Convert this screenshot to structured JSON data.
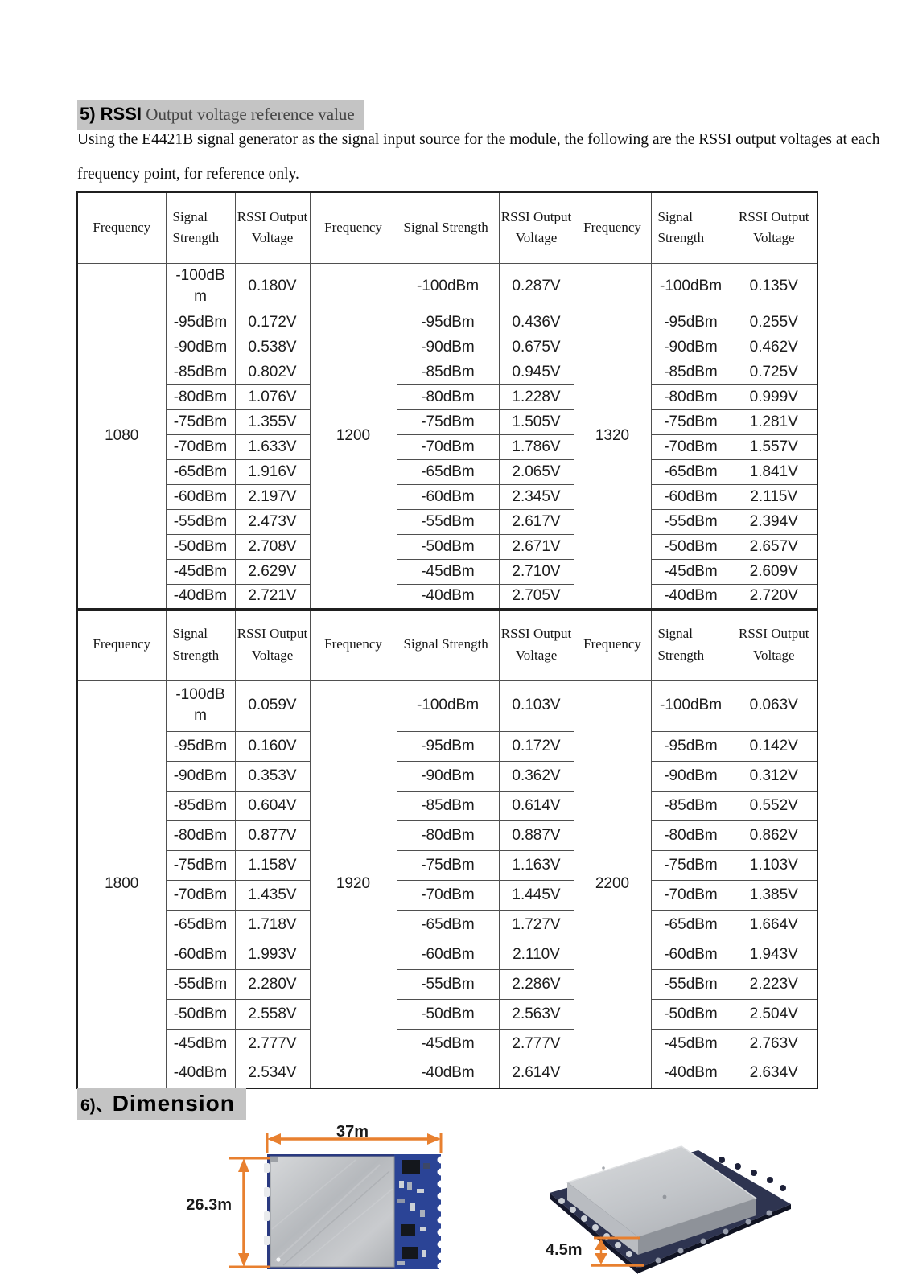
{
  "rssi_section": {
    "heading": {
      "prefix": "5) RSSI",
      "rest": " Output voltage reference value"
    },
    "intro_line1": "Using the E4421B signal generator as the signal input source for the module, the following are the RSSI output voltages at each",
    "intro_line2": "frequency point, for reference only.",
    "table": {
      "headers": {
        "frequency": "Frequency",
        "signal_strength": "Signal Strength",
        "rssi_output_voltage": "RSSI Output Voltage"
      },
      "signal_levels": [
        "-100dBm",
        "-95dBm",
        "-90dBm",
        "-85dBm",
        "-80dBm",
        "-75dBm",
        "-70dBm",
        "-65dBm",
        "-60dBm",
        "-55dBm",
        "-50dBm",
        "-45dBm",
        "-40dBm"
      ],
      "sections": [
        {
          "groups": [
            {
              "frequency": "1080",
              "voltages": [
                "0.180V",
                "0.172V",
                "0.538V",
                "0.802V",
                "1.076V",
                "1.355V",
                "1.633V",
                "1.916V",
                "2.197V",
                "2.473V",
                "2.708V",
                "2.629V",
                "2.721V"
              ]
            },
            {
              "frequency": "1200",
              "voltages": [
                "0.287V",
                "0.436V",
                "0.675V",
                "0.945V",
                "1.228V",
                "1.505V",
                "1.786V",
                "2.065V",
                "2.345V",
                "2.617V",
                "2.671V",
                "2.710V",
                "2.705V"
              ]
            },
            {
              "frequency": "1320",
              "voltages": [
                "0.135V",
                "0.255V",
                "0.462V",
                "0.725V",
                "0.999V",
                "1.281V",
                "1.557V",
                "1.841V",
                "2.115V",
                "2.394V",
                "2.657V",
                "2.609V",
                "2.720V"
              ]
            }
          ]
        },
        {
          "groups": [
            {
              "frequency": "1800",
              "voltages": [
                "0.059V",
                "0.160V",
                "0.353V",
                "0.604V",
                "0.877V",
                "1.158V",
                "1.435V",
                "1.718V",
                "1.993V",
                "2.280V",
                "2.558V",
                "2.777V",
                "2.534V"
              ]
            },
            {
              "frequency": "1920",
              "voltages": [
                "0.103V",
                "0.172V",
                "0.362V",
                "0.614V",
                "0.887V",
                "1.163V",
                "1.445V",
                "1.727V",
                "2.110V",
                "2.286V",
                "2.563V",
                "2.777V",
                "2.614V"
              ]
            },
            {
              "frequency": "2200",
              "voltages": [
                "0.063V",
                "0.142V",
                "0.312V",
                "0.552V",
                "0.862V",
                "1.103V",
                "1.385V",
                "1.664V",
                "1.943V",
                "2.223V",
                "2.504V",
                "2.763V",
                "2.634V"
              ]
            }
          ]
        }
      ]
    }
  },
  "dimension_section": {
    "heading": {
      "prefix": "6)",
      "separator": "、",
      "label": "Dimension"
    },
    "labels": {
      "width": "37m",
      "height": "26.3m",
      "thickness": "4.5m"
    },
    "colors": {
      "dimension_arrow": "#E8802F",
      "heading_highlight": "#C4C4C4",
      "pcb_blue": "#2B4496",
      "pcb_dark_navy": "#2E3450",
      "shield_silver": "#BEC1C5"
    }
  }
}
